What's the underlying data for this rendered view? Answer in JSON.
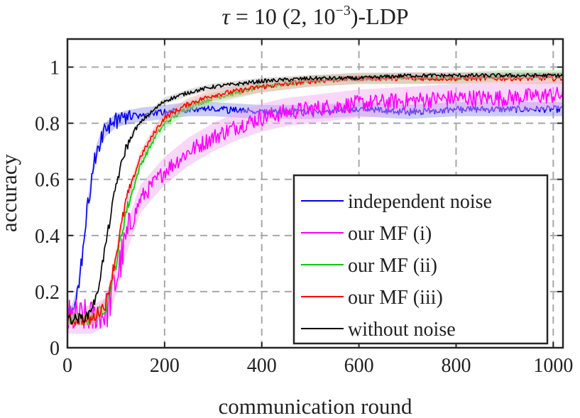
{
  "chart_data": {
    "type": "line",
    "title_parts": {
      "tau": "τ",
      "eq": " = 10  (2, 10",
      "exp": "−3",
      "tail": ")-LDP"
    },
    "xlabel": "communication round",
    "ylabel": "accuracy",
    "xlim": [
      0,
      1020
    ],
    "ylim": [
      0,
      1.1
    ],
    "xticks": [
      0,
      200,
      400,
      600,
      800,
      1000
    ],
    "yticks": [
      0,
      0.2,
      0.4,
      0.6,
      0.8,
      1
    ],
    "xtick_labels": [
      "0",
      "200",
      "400",
      "600",
      "800",
      "1000"
    ],
    "ytick_labels": [
      "0",
      "0.2",
      "0.4",
      "0.6",
      "0.8",
      "1"
    ],
    "grid": true,
    "legend_position": "bottom-right",
    "series": [
      {
        "name": "independent noise",
        "color": "#0000ee",
        "band_color": "#8c8cf0",
        "x": [
          0,
          10,
          20,
          30,
          40,
          50,
          60,
          70,
          80,
          100,
          120,
          150,
          200,
          250,
          300,
          400,
          500,
          600,
          700,
          800,
          900,
          1000,
          1020
        ],
        "y": [
          0.11,
          0.13,
          0.19,
          0.32,
          0.48,
          0.61,
          0.7,
          0.75,
          0.78,
          0.81,
          0.82,
          0.83,
          0.84,
          0.85,
          0.85,
          0.84,
          0.84,
          0.85,
          0.84,
          0.85,
          0.85,
          0.85,
          0.85
        ]
      },
      {
        "name": "our MF (i)",
        "color": "#ff00ff",
        "band_color": "#f2a6f2",
        "x": [
          0,
          50,
          80,
          100,
          120,
          150,
          200,
          250,
          300,
          350,
          400,
          450,
          500,
          600,
          700,
          800,
          900,
          1000,
          1020
        ],
        "y": [
          0.1,
          0.1,
          0.13,
          0.24,
          0.38,
          0.53,
          0.63,
          0.7,
          0.75,
          0.79,
          0.82,
          0.84,
          0.85,
          0.87,
          0.88,
          0.89,
          0.89,
          0.9,
          0.9
        ]
      },
      {
        "name": "our MF (ii)",
        "color": "#00cc00",
        "band_color": "#9ee69e",
        "x": [
          0,
          50,
          80,
          100,
          120,
          150,
          180,
          200,
          250,
          300,
          400,
          500,
          600,
          700,
          800,
          900,
          1000,
          1020
        ],
        "y": [
          0.1,
          0.1,
          0.15,
          0.3,
          0.48,
          0.65,
          0.75,
          0.8,
          0.86,
          0.89,
          0.93,
          0.95,
          0.96,
          0.96,
          0.96,
          0.97,
          0.97,
          0.97
        ]
      },
      {
        "name": "our MF (iii)",
        "color": "#ff0000",
        "band_color": "#f5a3a3",
        "x": [
          0,
          50,
          80,
          100,
          120,
          150,
          180,
          200,
          250,
          300,
          400,
          500,
          600,
          700,
          800,
          900,
          1000,
          1020
        ],
        "y": [
          0.1,
          0.1,
          0.16,
          0.33,
          0.52,
          0.68,
          0.77,
          0.82,
          0.87,
          0.9,
          0.93,
          0.95,
          0.96,
          0.96,
          0.96,
          0.96,
          0.96,
          0.96
        ]
      },
      {
        "name": "without noise",
        "color": "#000000",
        "band_color": "#bbbbbb",
        "x": [
          0,
          40,
          60,
          80,
          100,
          120,
          140,
          160,
          180,
          200,
          250,
          300,
          400,
          500,
          600,
          700,
          800,
          900,
          1000,
          1020
        ],
        "y": [
          0.1,
          0.11,
          0.18,
          0.38,
          0.58,
          0.71,
          0.78,
          0.82,
          0.85,
          0.88,
          0.91,
          0.93,
          0.95,
          0.96,
          0.96,
          0.97,
          0.97,
          0.97,
          0.97,
          0.97
        ]
      }
    ]
  }
}
